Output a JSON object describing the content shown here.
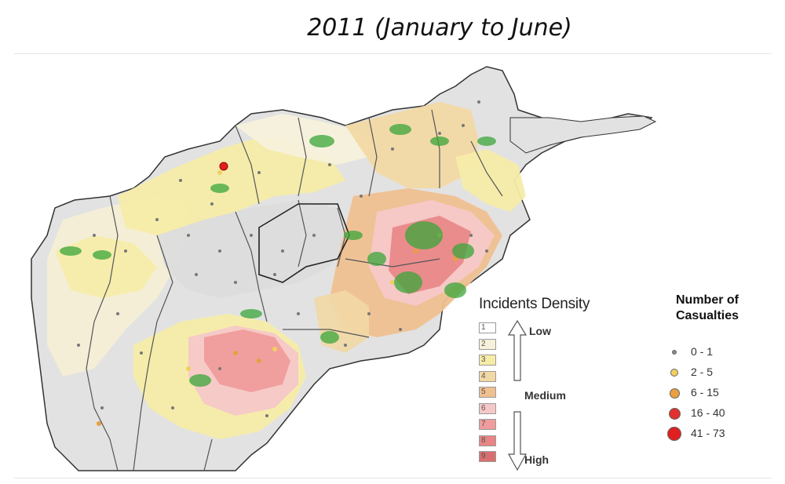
{
  "title": "2011 (January to June)",
  "map": {
    "country": "Afghanistan",
    "density_legend": {
      "title": "Incidents Density",
      "levels": [
        {
          "label": "1",
          "color": "#ffffff"
        },
        {
          "label": "2",
          "color": "#f7f1dc"
        },
        {
          "label": "3",
          "color": "#f6eca8"
        },
        {
          "label": "4",
          "color": "#f2d8a4"
        },
        {
          "label": "5",
          "color": "#efc090"
        },
        {
          "label": "6",
          "color": "#f5c8c8"
        },
        {
          "label": "7",
          "color": "#ef9c9c"
        },
        {
          "label": "8",
          "color": "#e98585"
        },
        {
          "label": "9",
          "color": "#d97070"
        }
      ],
      "low_label": "Low",
      "medium_label": "Medium",
      "high_label": "High"
    },
    "casualty_legend": {
      "title_line1": "Number of",
      "title_line2": "Casualties",
      "items": [
        {
          "label": "0 - 1",
          "color": "#8a8a8a"
        },
        {
          "label": "2 - 5",
          "color": "#f0d060"
        },
        {
          "label": "6 - 15",
          "color": "#e8a040"
        },
        {
          "label": "16 - 40",
          "color": "#e03030"
        },
        {
          "label": "41 - 73",
          "color": "#e02020"
        }
      ]
    }
  }
}
